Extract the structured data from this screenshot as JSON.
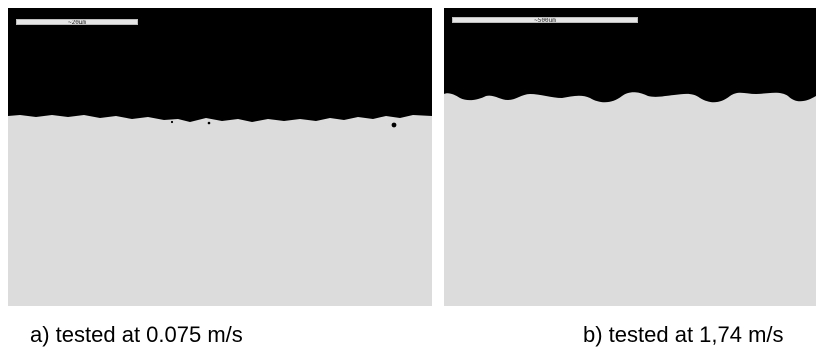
{
  "figure": {
    "panels": [
      {
        "id": "a",
        "scale_bar_label": "~20µm",
        "caption": "a) tested at 0.075 m/s"
      },
      {
        "id": "b",
        "scale_bar_label": "~500um",
        "caption": "b) tested at 1,74 m/s"
      }
    ]
  }
}
